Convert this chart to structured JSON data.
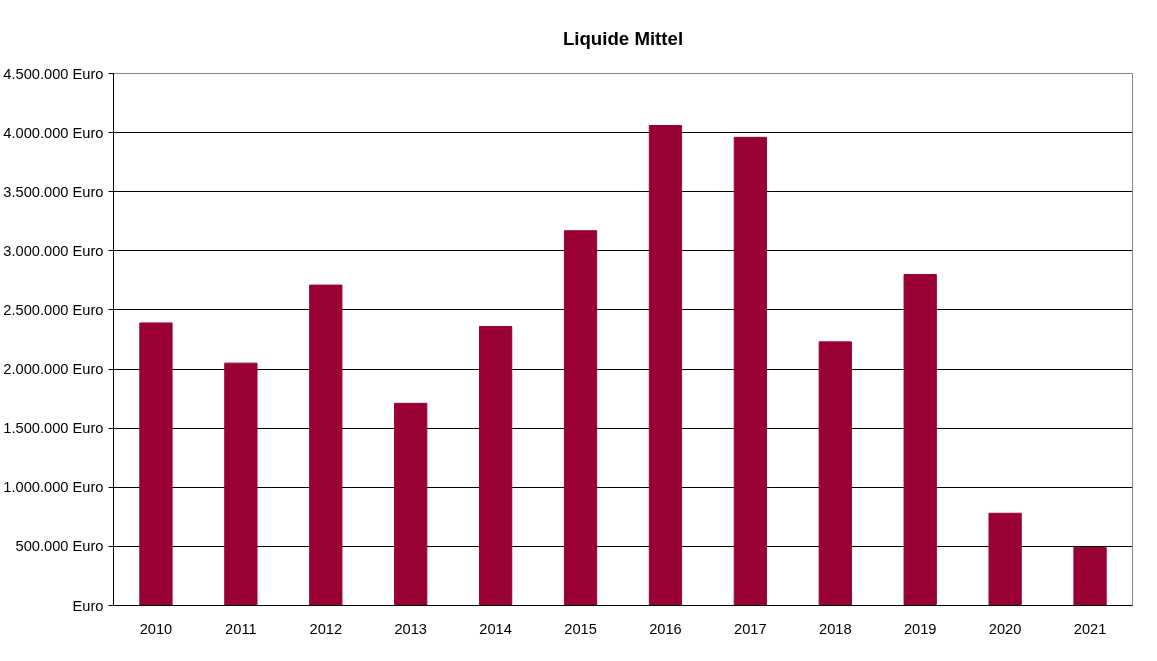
{
  "chart_data": {
    "type": "bar",
    "title": "Liquide Mittel",
    "categories": [
      "2010",
      "2011",
      "2012",
      "2013",
      "2014",
      "2015",
      "2016",
      "2017",
      "2018",
      "2019",
      "2020",
      "2021"
    ],
    "values": [
      2390000,
      2050000,
      2710000,
      1710000,
      2360000,
      3170000,
      4060000,
      3960000,
      2230000,
      2800000,
      780000,
      490000
    ],
    "color": "#990033",
    "ylim": [
      0,
      4500000
    ],
    "yticks": [
      {
        "value": 0,
        "label": "Euro"
      },
      {
        "value": 500000,
        "label": "500.000 Euro"
      },
      {
        "value": 1000000,
        "label": "1.000.000 Euro"
      },
      {
        "value": 1500000,
        "label": "1.500.000 Euro"
      },
      {
        "value": 2000000,
        "label": "2.000.000 Euro"
      },
      {
        "value": 2500000,
        "label": "2.500.000 Euro"
      },
      {
        "value": 3000000,
        "label": "3.000.000 Euro"
      },
      {
        "value": 3500000,
        "label": "3.500.000 Euro"
      },
      {
        "value": 4000000,
        "label": "4.000.000 Euro"
      },
      {
        "value": 4500000,
        "label": "4.500.000 Euro"
      }
    ],
    "grid": "y"
  }
}
